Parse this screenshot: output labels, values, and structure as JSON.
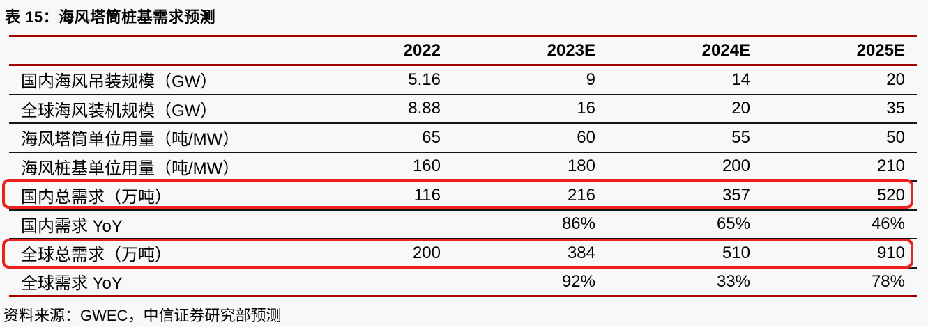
{
  "title": "表 15：海风塔筒桩基需求预测",
  "source": "资料来源：GWEC，中信证券研究部预测",
  "colors": {
    "accent_line": "#a30000",
    "row_line": "#141414",
    "highlight_box": "#ee2020",
    "text": "#000000",
    "background": "#f8f8f8"
  },
  "table": {
    "column_headers": [
      "2022",
      "2023E",
      "2024E",
      "2025E"
    ],
    "rows": [
      {
        "label": "国内海风吊装规模（GW）",
        "values": [
          "5.16",
          "9",
          "14",
          "20"
        ],
        "highlighted": false
      },
      {
        "label": "全球海风装机规模（GW）",
        "values": [
          "8.88",
          "16",
          "20",
          "35"
        ],
        "highlighted": false
      },
      {
        "label": "海风塔筒单位用量（吨/MW）",
        "values": [
          "65",
          "60",
          "55",
          "50"
        ],
        "highlighted": false
      },
      {
        "label": "海风桩基单位用量（吨/MW）",
        "values": [
          "160",
          "180",
          "200",
          "210"
        ],
        "highlighted": false
      },
      {
        "label": "国内总需求（万吨）",
        "values": [
          "116",
          "216",
          "357",
          "520"
        ],
        "highlighted": true
      },
      {
        "label": "国内需求 YoY",
        "values": [
          "",
          "86%",
          "65%",
          "46%"
        ],
        "highlighted": false
      },
      {
        "label": "全球总需求（万吨）",
        "values": [
          "200",
          "384",
          "510",
          "910"
        ],
        "highlighted": true
      },
      {
        "label": "全球需求 YoY",
        "values": [
          "",
          "92%",
          "33%",
          "78%"
        ],
        "highlighted": false
      }
    ]
  }
}
